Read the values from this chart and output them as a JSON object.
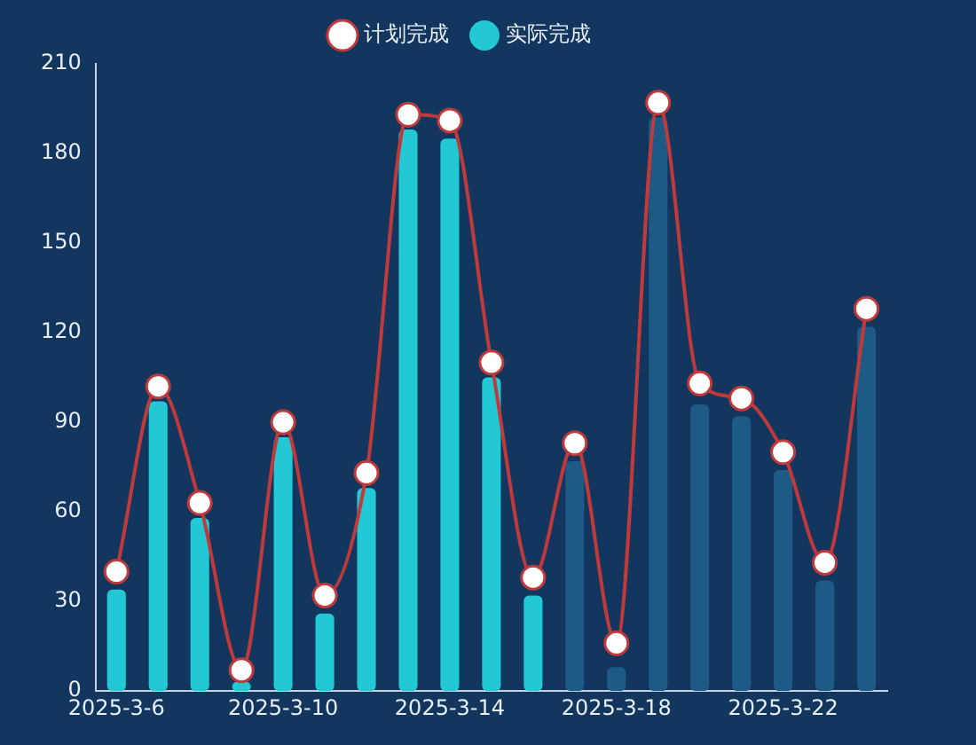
{
  "chart_data": {
    "type": "bar",
    "categories": [
      "2025-3-6",
      null,
      null,
      null,
      "2025-3-10",
      null,
      null,
      null,
      "2025-3-14",
      null,
      null,
      null,
      "2025-3-18",
      null,
      null,
      null,
      "2025-3-22",
      null,
      null
    ],
    "series": [
      {
        "name": "计划完成",
        "type": "line",
        "color": "#c0393b",
        "values": [
          40,
          102,
          63,
          7,
          90,
          32,
          73,
          193,
          191,
          110,
          38,
          83,
          16,
          197,
          103,
          98,
          80,
          43,
          128
        ]
      },
      {
        "name": "实际完成",
        "color": "#22c8d4",
        "values": [
          34,
          97,
          58,
          3,
          85,
          26,
          68,
          188,
          185,
          105,
          32,
          null,
          null,
          null,
          null,
          null,
          null,
          null,
          null
        ]
      },
      {
        "color": "#1d5a85",
        "values": [
          null,
          null,
          null,
          null,
          null,
          null,
          null,
          null,
          null,
          null,
          null,
          77,
          8,
          192,
          96,
          92,
          74,
          37,
          122
        ]
      }
    ],
    "ylim": [
      0,
      210
    ],
    "yticks": [
      0,
      30,
      60,
      90,
      120,
      150,
      180,
      210
    ],
    "grid": false,
    "legend": "top",
    "marker": "circle"
  }
}
